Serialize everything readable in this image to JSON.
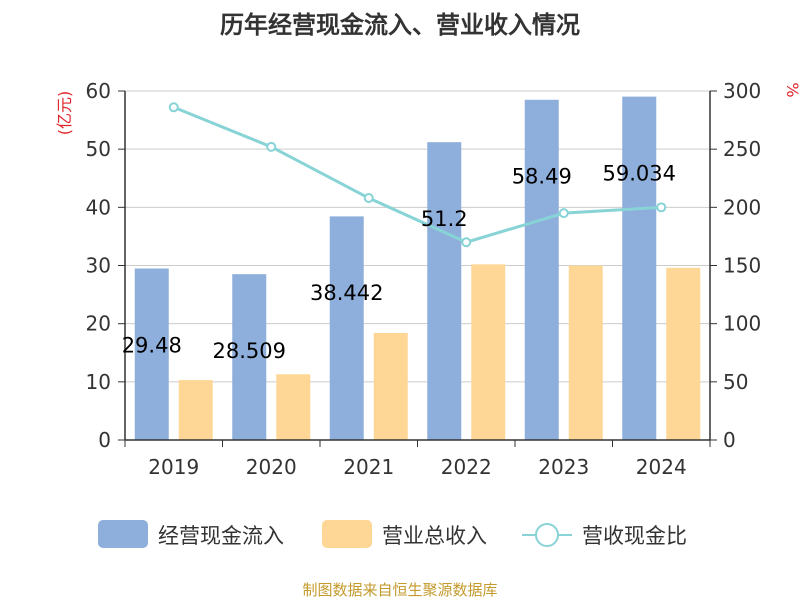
{
  "chart_data": {
    "type": "bar",
    "title": "历年经营现金流入、营业收入情况",
    "categories": [
      "2019",
      "2020",
      "2021",
      "2022",
      "2023",
      "2024"
    ],
    "series": [
      {
        "name": "经营现金流入",
        "kind": "bar",
        "axis": "left",
        "color": "#8eaedb",
        "values": [
          29.48,
          28.509,
          38.442,
          51.2,
          58.49,
          59.034
        ],
        "labels": [
          "29.48",
          "28.509",
          "38.442",
          "51.2",
          "58.49",
          "59.034"
        ]
      },
      {
        "name": "营业总收入",
        "kind": "bar",
        "axis": "left",
        "color": "#fed796",
        "values": [
          10.3,
          11.3,
          18.4,
          30.2,
          30.0,
          29.6
        ]
      },
      {
        "name": "营收现金比",
        "kind": "line",
        "axis": "right",
        "color": "#87d3d6",
        "values": [
          286,
          252,
          208,
          170,
          195,
          200
        ]
      }
    ],
    "y_left": {
      "unit": "(亿元)",
      "min": 0,
      "max": 60,
      "ticks": [
        "0",
        "10",
        "20",
        "30",
        "40",
        "50",
        "60"
      ]
    },
    "y_right": {
      "unit": "%",
      "min": 0,
      "max": 300,
      "ticks": [
        "0",
        "50",
        "100",
        "150",
        "200",
        "250",
        "300"
      ]
    },
    "legend_position": "bottom",
    "grid": true
  },
  "colors": {
    "unit_label": "#e0242a",
    "source": "#c49a2c",
    "axis": "#333333",
    "grid": "#cccccc"
  },
  "source_text": "制图数据来自恒生聚源数据库"
}
